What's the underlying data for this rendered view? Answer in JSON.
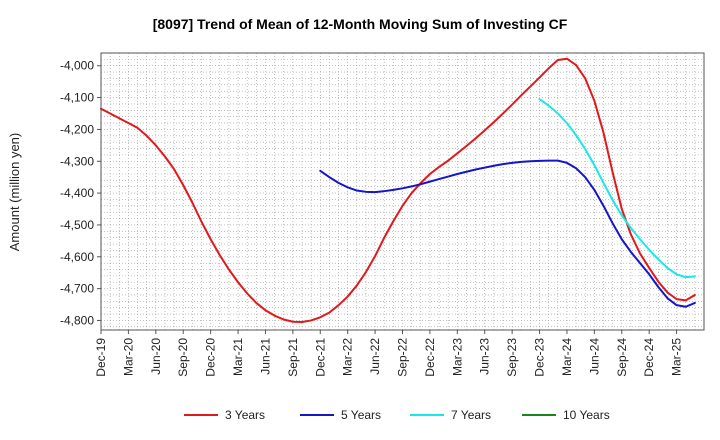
{
  "chart_data": {
    "type": "line",
    "title": "[8097]  Trend of Mean of 12-Month Moving Sum of Investing CF",
    "xlabel": "",
    "ylabel": "Amount (million yen)",
    "ylim": [
      -4830,
      -3960
    ],
    "yticks": [
      -4000,
      -4100,
      -4200,
      -4300,
      -4400,
      -4500,
      -4600,
      -4700,
      -4800
    ],
    "ytick_labels": [
      "-4,000",
      "-4,100",
      "-4,200",
      "-4,300",
      "-4,400",
      "-4,500",
      "-4,600",
      "-4,700",
      "-4,800"
    ],
    "x_month_range": [
      0,
      66
    ],
    "xtick_labels": [
      "Dec-19",
      "Mar-20",
      "Jun-20",
      "Sep-20",
      "Dec-20",
      "Mar-21",
      "Jun-21",
      "Sep-21",
      "Dec-21",
      "Mar-22",
      "Jun-22",
      "Sep-22",
      "Dec-22",
      "Mar-23",
      "Jun-23",
      "Sep-23",
      "Dec-23",
      "Mar-24",
      "Jun-24",
      "Sep-24",
      "Dec-24",
      "Mar-25"
    ],
    "grid": true,
    "legend_position": "bottom",
    "series": [
      {
        "name": "3 Years",
        "color": "#e0191c",
        "points": [
          [
            0,
            -4135
          ],
          [
            2,
            -4165
          ],
          [
            3,
            -4180
          ],
          [
            4,
            -4195
          ],
          [
            5,
            -4220
          ],
          [
            6,
            -4250
          ],
          [
            7,
            -4285
          ],
          [
            8,
            -4325
          ],
          [
            9,
            -4375
          ],
          [
            10,
            -4430
          ],
          [
            11,
            -4490
          ],
          [
            12,
            -4545
          ],
          [
            13,
            -4595
          ],
          [
            14,
            -4640
          ],
          [
            15,
            -4680
          ],
          [
            16,
            -4715
          ],
          [
            17,
            -4745
          ],
          [
            18,
            -4768
          ],
          [
            19,
            -4785
          ],
          [
            20,
            -4797
          ],
          [
            21,
            -4804
          ],
          [
            22,
            -4805
          ],
          [
            23,
            -4800
          ],
          [
            24,
            -4790
          ],
          [
            25,
            -4775
          ],
          [
            26,
            -4752
          ],
          [
            27,
            -4725
          ],
          [
            28,
            -4690
          ],
          [
            29,
            -4648
          ],
          [
            30,
            -4598
          ],
          [
            31,
            -4540
          ],
          [
            32,
            -4488
          ],
          [
            33,
            -4440
          ],
          [
            34,
            -4400
          ],
          [
            35,
            -4368
          ],
          [
            36,
            -4340
          ],
          [
            37,
            -4318
          ],
          [
            38,
            -4298
          ],
          [
            39,
            -4275
          ],
          [
            40,
            -4252
          ],
          [
            41,
            -4228
          ],
          [
            42,
            -4203
          ],
          [
            43,
            -4177
          ],
          [
            44,
            -4150
          ],
          [
            45,
            -4122
          ],
          [
            46,
            -4093
          ],
          [
            47,
            -4065
          ],
          [
            48,
            -4037
          ],
          [
            49,
            -4008
          ],
          [
            50,
            -3982
          ],
          [
            51,
            -3978
          ],
          [
            52,
            -3998
          ],
          [
            53,
            -4040
          ],
          [
            54,
            -4110
          ],
          [
            55,
            -4210
          ],
          [
            56,
            -4335
          ],
          [
            57,
            -4450
          ],
          [
            58,
            -4530
          ],
          [
            59,
            -4590
          ],
          [
            60,
            -4635
          ],
          [
            61,
            -4678
          ],
          [
            62,
            -4712
          ],
          [
            63,
            -4733
          ],
          [
            64,
            -4737
          ],
          [
            65,
            -4720
          ]
        ]
      },
      {
        "name": "5 Years",
        "color": "#1416c8",
        "points": [
          [
            24,
            -4330
          ],
          [
            25,
            -4350
          ],
          [
            26,
            -4368
          ],
          [
            27,
            -4382
          ],
          [
            28,
            -4392
          ],
          [
            29,
            -4396
          ],
          [
            30,
            -4397
          ],
          [
            31,
            -4394
          ],
          [
            32,
            -4390
          ],
          [
            33,
            -4385
          ],
          [
            34,
            -4379
          ],
          [
            35,
            -4372
          ],
          [
            36,
            -4364
          ],
          [
            37,
            -4356
          ],
          [
            38,
            -4348
          ],
          [
            39,
            -4340
          ],
          [
            40,
            -4333
          ],
          [
            41,
            -4326
          ],
          [
            42,
            -4320
          ],
          [
            43,
            -4314
          ],
          [
            44,
            -4309
          ],
          [
            45,
            -4305
          ],
          [
            46,
            -4302
          ],
          [
            47,
            -4300
          ],
          [
            48,
            -4299
          ],
          [
            49,
            -4298
          ],
          [
            50,
            -4298
          ],
          [
            51,
            -4305
          ],
          [
            52,
            -4322
          ],
          [
            53,
            -4350
          ],
          [
            54,
            -4390
          ],
          [
            55,
            -4440
          ],
          [
            56,
            -4495
          ],
          [
            57,
            -4545
          ],
          [
            58,
            -4585
          ],
          [
            59,
            -4620
          ],
          [
            60,
            -4655
          ],
          [
            61,
            -4695
          ],
          [
            62,
            -4730
          ],
          [
            63,
            -4752
          ],
          [
            64,
            -4757
          ],
          [
            65,
            -4745
          ]
        ]
      },
      {
        "name": "7 Years",
        "color": "#18e8e8",
        "points": [
          [
            48,
            -4105
          ],
          [
            49,
            -4125
          ],
          [
            50,
            -4150
          ],
          [
            51,
            -4180
          ],
          [
            52,
            -4218
          ],
          [
            53,
            -4262
          ],
          [
            54,
            -4312
          ],
          [
            55,
            -4368
          ],
          [
            56,
            -4422
          ],
          [
            57,
            -4470
          ],
          [
            58,
            -4510
          ],
          [
            59,
            -4545
          ],
          [
            60,
            -4578
          ],
          [
            61,
            -4608
          ],
          [
            62,
            -4635
          ],
          [
            63,
            -4655
          ],
          [
            64,
            -4664
          ],
          [
            65,
            -4662
          ]
        ]
      },
      {
        "name": "10 Years",
        "color": "#18861c",
        "points": []
      }
    ]
  }
}
